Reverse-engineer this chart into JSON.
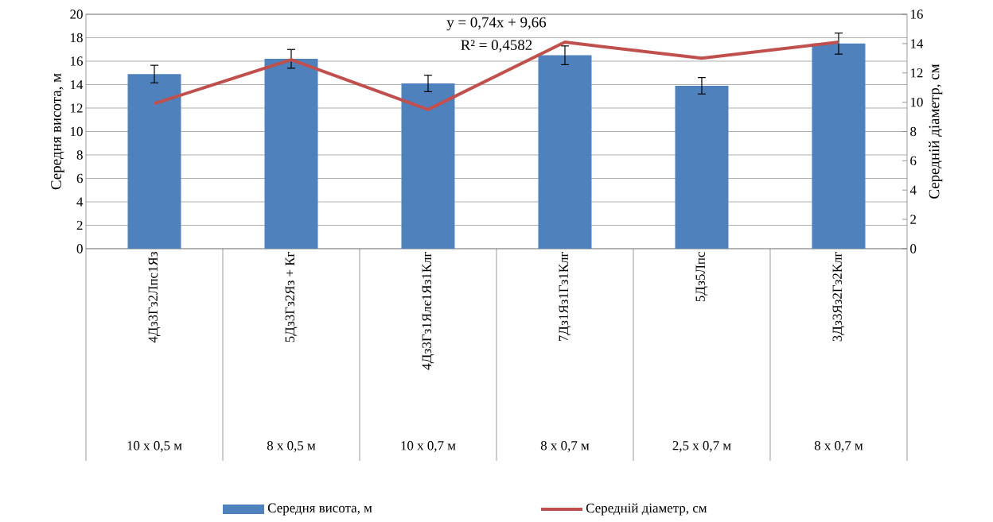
{
  "chart_data": {
    "type": "bar",
    "categories": [
      "4Дз3Гз2Лпс1Яз",
      "5Дз3Гз2Яз + Кг",
      "4Дз3Гз1Ялє1Яз1Клг",
      "7Дз1Яз1Гз1Клг",
      "5Дз5Лпс",
      "3Дз3Яз2Гз2Клг"
    ],
    "series": [
      {
        "name": "Середня висота, м",
        "color": "#4f81bd",
        "values": [
          14.9,
          16.2,
          14.1,
          16.5,
          13.9,
          17.5
        ],
        "errors": [
          0.75,
          0.8,
          0.7,
          0.8,
          0.7,
          0.9
        ]
      },
      {
        "name": "Середній діаметр, см",
        "type": "line",
        "axis": "y2",
        "color": "#c0504d",
        "values": [
          9.9,
          12.9,
          9.5,
          14.1,
          13.0,
          14.1
        ]
      }
    ],
    "ylabel": "Середня висота, м",
    "y2label": "Середній діаметр, см",
    "ylim": [
      0,
      20
    ],
    "yticks": [
      0,
      2,
      4,
      6,
      8,
      10,
      12,
      14,
      16,
      18,
      20
    ],
    "y2lim": [
      0,
      16
    ],
    "y2ticks": [
      0,
      2,
      4,
      6,
      8,
      10,
      12,
      14,
      16
    ],
    "grid": "y",
    "legend": "bottom",
    "annotations": [
      "y = 0,74x + 9,66",
      "R² = 0,4582",
      "10 x 0,5 м",
      "8 x 0,5 м",
      "10 x 0,7 м",
      "8 x 0,7 м",
      "2,5 x 0,7 м",
      "8 x 0,7 м"
    ]
  }
}
